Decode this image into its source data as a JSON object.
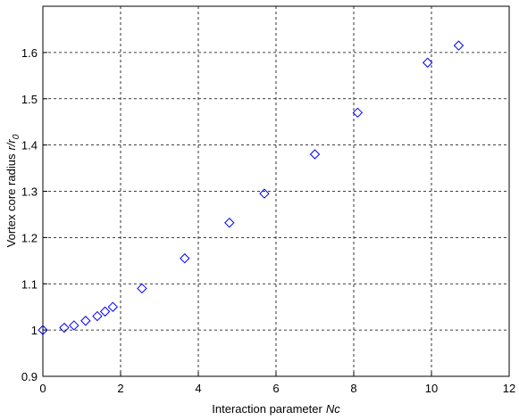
{
  "chart_data": {
    "type": "scatter",
    "xlabel": [
      "Interaction parameter",
      "Nc"
    ],
    "ylabel": [
      "Vortex core radius",
      "r/r",
      "0"
    ],
    "series": [
      {
        "color": "#0000ff",
        "marker": "diamond",
        "x": [
          0,
          0.55,
          0.8,
          1.1,
          1.4,
          1.6,
          1.8,
          2.55,
          3.65,
          4.8,
          5.7,
          7.0,
          8.1,
          9.9,
          10.7
        ],
        "values": [
          1.0,
          1.005,
          1.01,
          1.02,
          1.03,
          1.04,
          1.05,
          1.09,
          1.155,
          1.232,
          1.295,
          1.38,
          1.47,
          1.578,
          1.615
        ]
      }
    ],
    "xlim": [
      0,
      12
    ],
    "xticks": [
      0,
      2,
      4,
      6,
      8,
      10,
      12
    ],
    "ylim": [
      0.9,
      1.7
    ],
    "yticks": [
      0.9,
      1,
      1.1,
      1.2,
      1.3,
      1.4,
      1.5,
      1.6
    ],
    "grid": true
  }
}
